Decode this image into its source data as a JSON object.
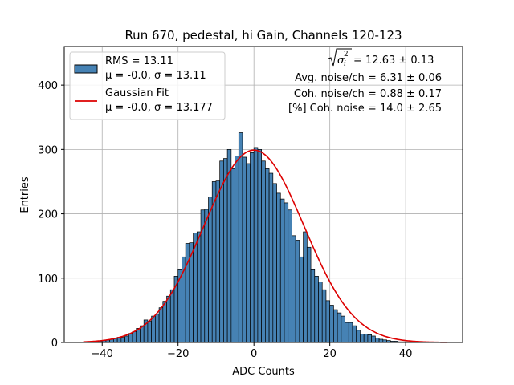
{
  "chart_data": {
    "type": "bar",
    "title": "Run 670, pedestal, hi Gain, Channels 120-123",
    "xlabel": "ADC Counts",
    "ylabel": "Entries",
    "xlim": [
      -50,
      55
    ],
    "ylim": [
      0,
      460
    ],
    "xticks": [
      -40,
      -20,
      0,
      20,
      40
    ],
    "xtick_labels": [
      "−40",
      "−20",
      "0",
      "20",
      "40"
    ],
    "yticks": [
      0,
      100,
      200,
      300,
      400
    ],
    "ytick_labels": [
      "0",
      "100",
      "200",
      "300",
      "400"
    ],
    "grid": true,
    "legend_position": "top-left",
    "bin_width": 1,
    "bin_starts": [
      -45,
      -44,
      -43,
      -42,
      -41,
      -40,
      -39,
      -38,
      -37,
      -36,
      -35,
      -34,
      -33,
      -32,
      -31,
      -30,
      -29,
      -28,
      -27,
      -26,
      -25,
      -24,
      -23,
      -22,
      -21,
      -20,
      -19,
      -18,
      -17,
      -16,
      -15,
      -14,
      -13,
      -12,
      -11,
      -10,
      -9,
      -8,
      -7,
      -6,
      -5,
      -4,
      -3,
      -2,
      -1,
      0,
      1,
      2,
      3,
      4,
      5,
      6,
      7,
      8,
      9,
      10,
      11,
      12,
      13,
      14,
      15,
      16,
      17,
      18,
      19,
      20,
      21,
      22,
      23,
      24,
      25,
      26,
      27,
      28,
      29,
      30,
      31,
      32,
      33,
      34,
      35,
      36,
      37,
      38,
      39,
      40,
      41,
      42,
      43,
      44,
      45,
      46,
      47,
      48,
      49,
      50
    ],
    "counts": [
      0,
      1,
      1,
      2,
      2,
      3,
      4,
      5,
      7,
      8,
      8,
      10,
      14,
      17,
      22,
      26,
      35,
      33,
      41,
      44,
      54,
      64,
      72,
      82,
      103,
      113,
      133,
      154,
      155,
      170,
      172,
      206,
      207,
      226,
      250,
      251,
      282,
      286,
      300,
      270,
      290,
      326,
      288,
      278,
      295,
      303,
      300,
      282,
      270,
      263,
      247,
      232,
      223,
      217,
      206,
      166,
      159,
      133,
      172,
      148,
      113,
      103,
      94,
      82,
      65,
      58,
      51,
      46,
      41,
      31,
      31,
      26,
      19,
      13,
      13,
      12,
      10,
      7,
      5,
      4,
      3,
      2,
      2,
      1,
      1,
      1,
      1,
      0,
      0,
      0,
      0,
      0,
      0,
      0,
      0,
      0
    ],
    "bar_color": "#4682b4",
    "fit_color": "#dd0000",
    "series": [
      {
        "name": "RMS = 13.11",
        "name_line2": "μ = -0.0, σ = 13.11",
        "type": "bar"
      },
      {
        "name": "Gaussian Fit",
        "name_line2": "μ = -0.0, σ = 13.177",
        "type": "line",
        "mu": 0.0,
        "sigma": 13.177,
        "amplitude": 299,
        "x_range": [
          -45,
          51
        ]
      }
    ],
    "annotations": {
      "line1_rest": " = 12.63 ± 0.13",
      "line2": "Avg. noise/ch = 6.31 ± 0.06",
      "line3": "Coh. noise/ch = 0.88 ± 0.17",
      "line4": "[%] Coh. noise = 14.0 ± 2.65"
    }
  }
}
